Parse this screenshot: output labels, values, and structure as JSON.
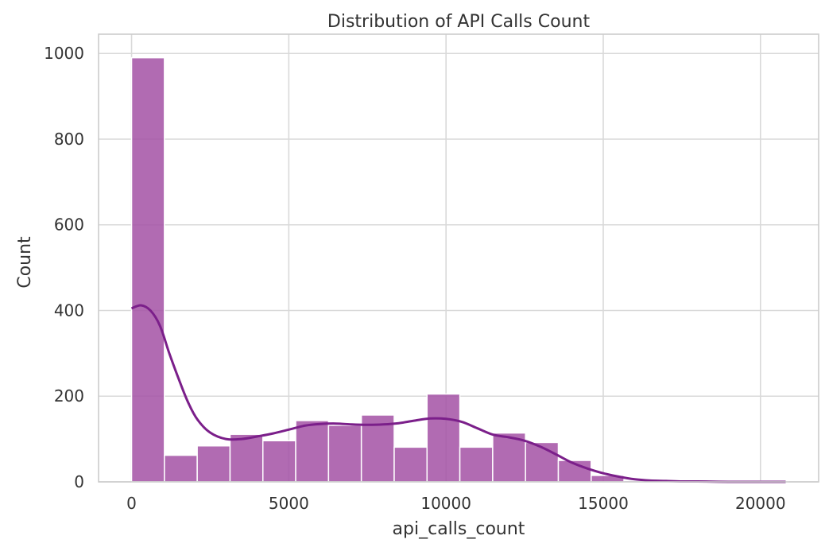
{
  "chart_data": {
    "type": "bar",
    "title": "Distribution of API Calls Count",
    "xlabel": "api_calls_count",
    "ylabel": "Count",
    "xlim": [
      -1050,
      21850
    ],
    "ylim": [
      0,
      1045
    ],
    "grid": true,
    "legend": "none",
    "x_ticks": [
      0,
      5000,
      10000,
      15000,
      20000
    ],
    "x_tick_labels": [
      "0",
      "5000",
      "10000",
      "15000",
      "20000"
    ],
    "y_ticks": [
      0,
      200,
      400,
      600,
      800,
      1000
    ],
    "y_tick_labels": [
      "0",
      "200",
      "400",
      "600",
      "800",
      "1000"
    ],
    "bins": [
      {
        "x0": 0,
        "x1": 1044,
        "count": 990
      },
      {
        "x0": 1044,
        "x1": 2088,
        "count": 62
      },
      {
        "x0": 2088,
        "x1": 3132,
        "count": 84
      },
      {
        "x0": 3132,
        "x1": 4176,
        "count": 111
      },
      {
        "x0": 4176,
        "x1": 5220,
        "count": 96
      },
      {
        "x0": 5220,
        "x1": 6264,
        "count": 143
      },
      {
        "x0": 6264,
        "x1": 7308,
        "count": 132
      },
      {
        "x0": 7308,
        "x1": 8352,
        "count": 156
      },
      {
        "x0": 8352,
        "x1": 9396,
        "count": 81
      },
      {
        "x0": 9396,
        "x1": 10440,
        "count": 205
      },
      {
        "x0": 10440,
        "x1": 11484,
        "count": 81
      },
      {
        "x0": 11484,
        "x1": 12528,
        "count": 114
      },
      {
        "x0": 12528,
        "x1": 13572,
        "count": 92
      },
      {
        "x0": 13572,
        "x1": 14616,
        "count": 50
      },
      {
        "x0": 14616,
        "x1": 15660,
        "count": 15
      },
      {
        "x0": 15660,
        "x1": 16704,
        "count": 3
      },
      {
        "x0": 16704,
        "x1": 17748,
        "count": 1
      },
      {
        "x0": 17748,
        "x1": 18792,
        "count": 1
      },
      {
        "x0": 18792,
        "x1": 19836,
        "count": 1
      },
      {
        "x0": 19836,
        "x1": 20880,
        "count": 2
      }
    ],
    "kde": {
      "x": [
        0,
        300,
        600,
        900,
        1200,
        1500,
        1800,
        2100,
        2500,
        3000,
        3500,
        4000,
        4500,
        5000,
        5500,
        6000,
        6500,
        7000,
        7500,
        8000,
        8500,
        9000,
        9500,
        10000,
        10500,
        11000,
        11500,
        12000,
        12500,
        13000,
        13500,
        14000,
        14500,
        15000,
        15500,
        16000,
        16500,
        17000,
        17500,
        18000,
        19000,
        20000,
        20800
      ],
      "y": [
        405,
        412,
        400,
        365,
        300,
        240,
        185,
        145,
        115,
        100,
        100,
        106,
        113,
        122,
        131,
        135,
        136,
        134,
        133,
        134,
        137,
        143,
        148,
        147,
        140,
        125,
        110,
        104,
        96,
        82,
        64,
        45,
        31,
        20,
        12,
        6,
        3,
        2,
        1,
        1,
        0,
        0,
        0
      ]
    },
    "colors": {
      "bar_fill": "#a351a4",
      "bar_edge": "#ffffff",
      "kde_line": "#7b1f8a",
      "grid": "#d9d9d9",
      "spine": "#cccccc",
      "text": "#333333"
    }
  }
}
